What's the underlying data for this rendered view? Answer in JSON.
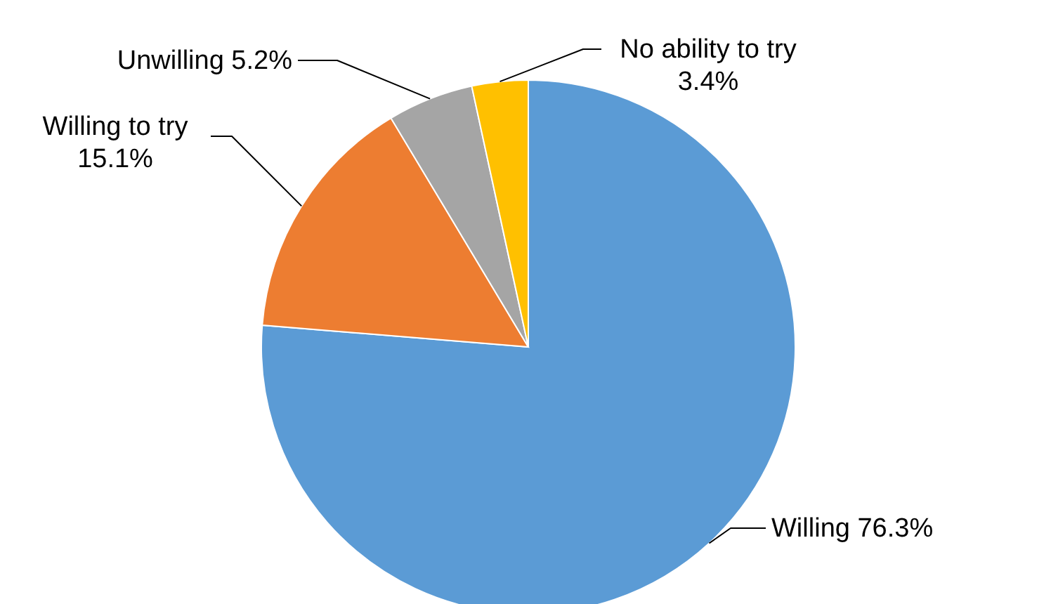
{
  "chart_data": {
    "type": "pie",
    "categories": [
      "Willing",
      "Willing to try",
      "Unwilling",
      "No ability to try"
    ],
    "values": [
      76.3,
      15.1,
      5.2,
      3.4
    ],
    "value_labels": [
      "76.3%",
      "15.1%",
      "5.2%",
      "3.4%"
    ],
    "colors": [
      "#5b9bd5",
      "#ed7d31",
      "#a5a5a5",
      "#ffc000"
    ]
  }
}
